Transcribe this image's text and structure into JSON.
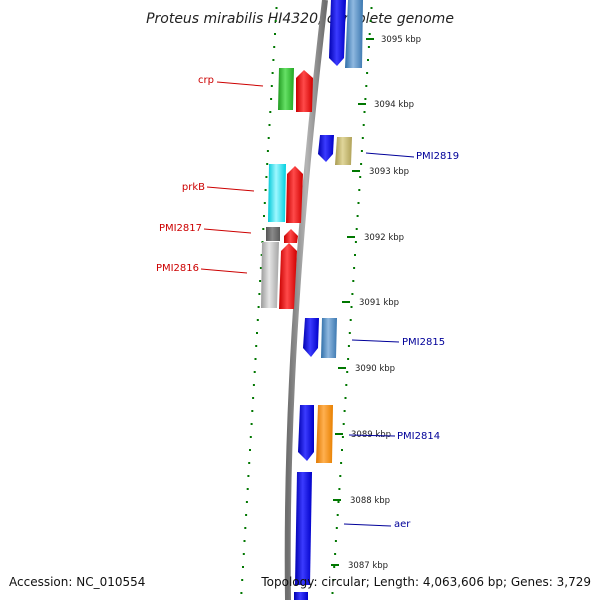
{
  "title": "Proteus mirabilis HI4320, complete genome",
  "accession": "Accession: NC_010554",
  "summary": "Topology: circular; Length: 4,063,606 bp; Genes: 3,729",
  "colors": {
    "label_red": "#cc0000",
    "label_blue": "#000099",
    "tick_green": "#007700",
    "backbone": "#8a8a8a"
  },
  "kbp_ticks": [
    {
      "label": "3095 kbp"
    },
    {
      "label": "3094 kbp"
    },
    {
      "label": "3093 kbp"
    },
    {
      "label": "3092 kbp"
    },
    {
      "label": "3091 kbp"
    },
    {
      "label": "3090 kbp"
    },
    {
      "label": "3089 kbp"
    },
    {
      "label": "3088 kbp"
    },
    {
      "label": "3087 kbp"
    }
  ],
  "gene_labels": [
    {
      "text": "crp",
      "strand": "reverse"
    },
    {
      "text": "prkB",
      "strand": "reverse"
    },
    {
      "text": "PMI2817",
      "strand": "reverse"
    },
    {
      "text": "PMI2816",
      "strand": "reverse"
    },
    {
      "text": "PMI2819",
      "strand": "forward"
    },
    {
      "text": "PMI2815",
      "strand": "forward"
    },
    {
      "text": "PMI2814",
      "strand": "forward"
    },
    {
      "text": "aer",
      "strand": "forward"
    }
  ]
}
